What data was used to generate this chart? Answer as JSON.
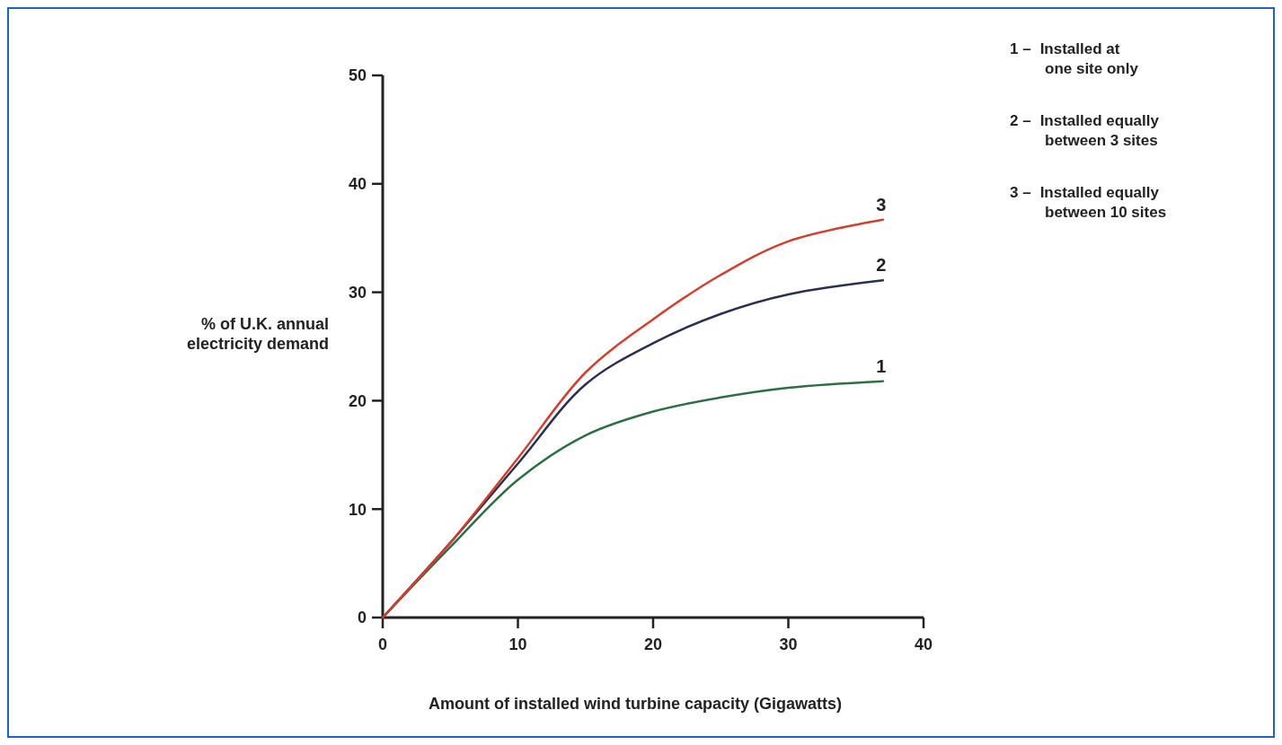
{
  "chart_data": {
    "type": "line",
    "xlabel": "Amount of installed wind turbine capacity (Gigawatts)",
    "ylabel": "% of U.K. annual electricity demand",
    "xlim": [
      0,
      40
    ],
    "xticks": [
      0,
      10,
      20,
      30,
      40
    ],
    "ylim": [
      0,
      50
    ],
    "yticks": [
      0,
      10,
      20,
      30,
      40,
      50
    ],
    "grid": false,
    "marker": "none",
    "line_style": "solid",
    "series": [
      {
        "name": "1",
        "color": "#2e6e46",
        "x": [
          0,
          5,
          10,
          15,
          20,
          25,
          30,
          37
        ],
        "values": [
          0,
          6.5,
          12.7,
          16.8,
          19.0,
          20.3,
          21.2,
          21.8
        ]
      },
      {
        "name": "2",
        "color": "#2a3050",
        "x": [
          0,
          5,
          10,
          15,
          20,
          25,
          30,
          37
        ],
        "values": [
          0,
          6.9,
          14.2,
          21.5,
          25.3,
          28.0,
          29.8,
          31.1
        ]
      },
      {
        "name": "3",
        "color": "#d04030",
        "x": [
          0,
          5,
          10,
          15,
          20,
          25,
          30,
          37
        ],
        "values": [
          0,
          6.9,
          14.7,
          22.6,
          27.5,
          31.6,
          34.7,
          36.7
        ]
      }
    ],
    "annotations": [
      "1 – Installed at one site only",
      "2 – Installed equally between 3 sites",
      "3 – Installed equally between 10 sites"
    ]
  }
}
